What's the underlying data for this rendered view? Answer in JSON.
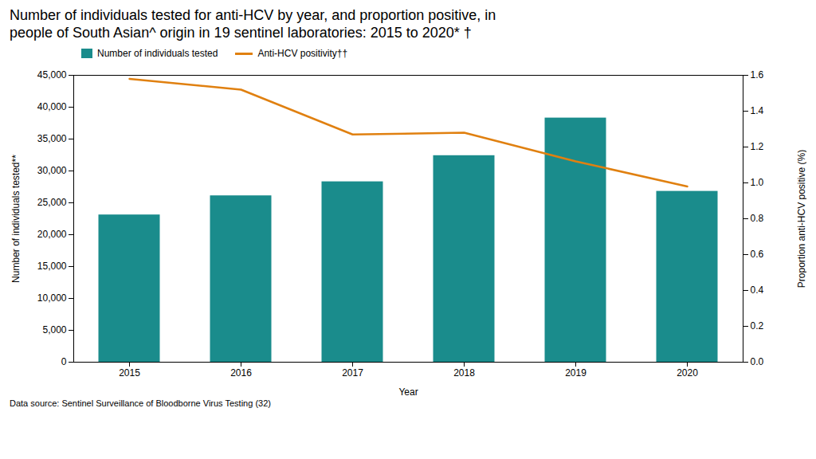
{
  "chart_data": {
    "type": "bar",
    "title": "Number of individuals tested for anti-HCV by year, and proportion positive, in",
    "subtitle": "people of South Asian^ origin in 19 sentinel laboratories: 2015 to 2020* †",
    "caption": "Data source: Sentinel Surveillance of Bloodborne Virus Testing (32)",
    "x_label": "Year",
    "y_label": "Number of individuals tested**",
    "y2_label": "Proportion anti-HCV positive (%)",
    "x": [
      2015,
      2016,
      2017,
      2018,
      2019,
      2020
    ],
    "xlim": [
      2014.5,
      2020.5
    ],
    "xticks": [
      2015,
      2016,
      2017,
      2018,
      2019,
      2020
    ],
    "ylim": [
      0,
      45000
    ],
    "yticks": [
      0,
      {
        "value": 5000,
        "label": "5,000"
      },
      {
        "value": 10000,
        "label": "10,000"
      },
      {
        "value": 15000,
        "label": "15,000"
      },
      {
        "value": 20000,
        "label": "20,000"
      },
      {
        "value": 25000,
        "label": "25,000"
      },
      {
        "value": 30000,
        "label": "30,000"
      },
      {
        "value": 35000,
        "label": "35,000"
      },
      {
        "value": 40000,
        "label": "40,000"
      },
      {
        "value": 45000,
        "label": "45,000"
      }
    ],
    "y2lim": [
      0.0,
      1.6
    ],
    "y2ticks": [
      {
        "value": 0.0,
        "label": "0.0"
      },
      0.2,
      0.4,
      0.6,
      0.8,
      {
        "value": 1.0,
        "label": "1.0"
      },
      1.2,
      1.4,
      1.6
    ],
    "series": [
      {
        "name": "Number of individuals tested",
        "type": "bar",
        "color": "#1a8c8c",
        "values": [
          23100,
          26100,
          28300,
          32400,
          38300,
          26800
        ]
      },
      {
        "name": "Anti-HCV positivity††",
        "type": "line",
        "color": "#e08010",
        "axis": "y2",
        "values": [
          1.58,
          1.52,
          1.27,
          1.28,
          1.12,
          0.98
        ]
      }
    ],
    "legend": "top",
    "grid": false
  }
}
